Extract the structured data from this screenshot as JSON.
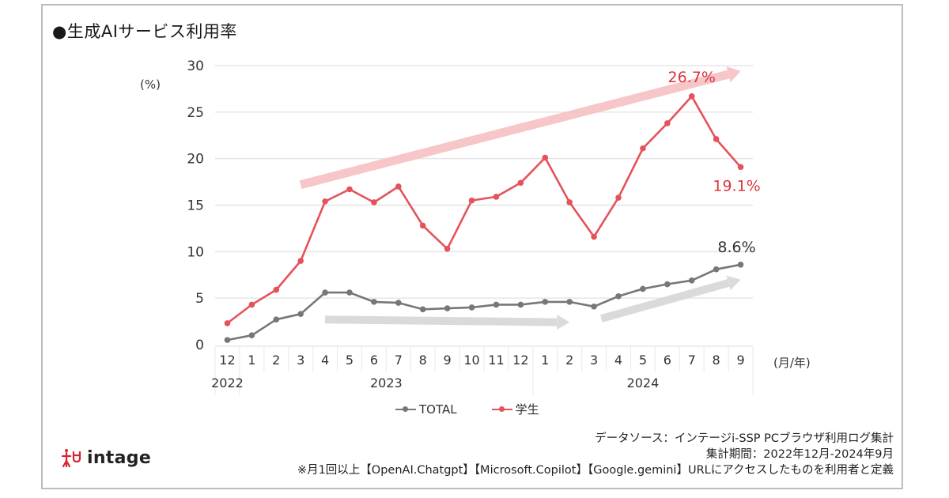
{
  "title": "●生成AIサービス利用率",
  "y_unit": "(%)",
  "x_unit": "(月/年)",
  "colors": {
    "total": "#777777",
    "student": "#e5525a",
    "student_label": "#d9363e",
    "student_trend_arrow": "#f7c3c6",
    "total_trend_arrow": "#d9d9d9",
    "gridline": "#e6e6e6",
    "label_dark": "#333333"
  },
  "chart_data": {
    "type": "line",
    "title": "生成AIサービス利用率",
    "ylabel": "(%)",
    "xlabel": "(月/年)",
    "ylim": [
      0,
      30
    ],
    "yticks": [
      0,
      5,
      10,
      15,
      20,
      25,
      30
    ],
    "grid": true,
    "legend_position": "bottom-center",
    "categories": [
      "12",
      "1",
      "2",
      "3",
      "4",
      "5",
      "6",
      "7",
      "8",
      "9",
      "10",
      "11",
      "12",
      "1",
      "2",
      "3",
      "4",
      "5",
      "6",
      "7",
      "8",
      "9"
    ],
    "year_groups": [
      {
        "label": "2022",
        "start": 0,
        "end": 0
      },
      {
        "label": "2023",
        "start": 1,
        "end": 12
      },
      {
        "label": "2024",
        "start": 13,
        "end": 21
      }
    ],
    "series": [
      {
        "name": "TOTAL",
        "key": "total",
        "values": [
          0.5,
          1.0,
          2.7,
          3.3,
          5.6,
          5.6,
          4.6,
          4.5,
          3.8,
          3.9,
          4.0,
          4.3,
          4.3,
          4.6,
          4.6,
          4.1,
          5.2,
          6.0,
          6.5,
          6.9,
          8.1,
          8.6
        ]
      },
      {
        "name": "学生",
        "key": "student",
        "values": [
          2.3,
          4.3,
          5.9,
          9.0,
          15.4,
          16.7,
          15.3,
          17.0,
          12.8,
          10.3,
          15.5,
          15.9,
          17.4,
          20.1,
          15.3,
          11.6,
          15.8,
          21.1,
          23.8,
          26.7,
          22.1,
          19.1
        ]
      }
    ],
    "annotations": [
      {
        "text": "26.7%",
        "series": "student",
        "index": 19
      },
      {
        "text": "19.1%",
        "series": "student",
        "index": 21
      },
      {
        "text": "8.6%",
        "series": "total",
        "index": 21
      }
    ],
    "trend_arrows": [
      {
        "series": "student",
        "from": {
          "index": 3,
          "value": 17.2
        },
        "to": {
          "index": 21,
          "value": 29.4
        }
      },
      {
        "series": "total",
        "from": {
          "index": 4,
          "value": 2.7
        },
        "to": {
          "index": 14,
          "value": 2.4
        }
      },
      {
        "series": "total",
        "from": {
          "index": 15.3,
          "value": 2.8
        },
        "to": {
          "index": 21,
          "value": 7.0
        }
      }
    ]
  },
  "legend": [
    {
      "label": "TOTAL",
      "key": "total"
    },
    {
      "label": "学生",
      "key": "student"
    }
  ],
  "logo": {
    "text": "intage",
    "icon": "intage-logo-icon"
  },
  "notes": {
    "source": "データソース：インテージi-SSP PCブラウザ利用ログ集計",
    "period": "集計期間：2022年12月-2024年9月",
    "definition": "※月1回以上【OpenAI.Chatgpt】【Microsoft.Copilot】【Google.gemini】URLにアクセスしたものを利用者と定義"
  }
}
